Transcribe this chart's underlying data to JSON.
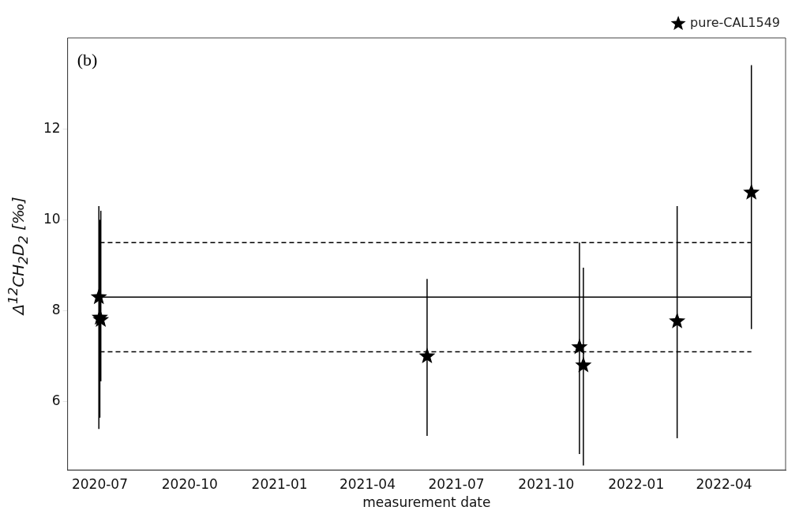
{
  "chart_data": {
    "type": "scatter",
    "xlabel": "measurement date",
    "ylabel": "Δ$^{12}$CH$_{2}$D$_{2}$ [‰]",
    "annotations": [
      "(b)"
    ],
    "xlim": [
      "2020-05-29",
      "2022-06-03"
    ],
    "xticks": [
      "2020-07",
      "2020-10",
      "2021-01",
      "2021-04",
      "2021-07",
      "2021-10",
      "2022-01",
      "2022-04"
    ],
    "ylim": [
      4.5,
      14.0
    ],
    "yticks": [
      6,
      8,
      10,
      12
    ],
    "grid": false,
    "legend": "top right",
    "marker": "star",
    "series": [
      {
        "name": "pure-CAL1549",
        "type": "scatter",
        "color": "#000000",
        "x": [
          "2020-06-30",
          "2020-07-01",
          "2020-07-02",
          "2021-06-01",
          "2021-11-04",
          "2021-11-08",
          "2022-02-12",
          "2022-04-29"
        ],
        "values": [
          8.3,
          7.85,
          7.8,
          7.0,
          7.2,
          6.8,
          7.77,
          10.6
        ],
        "errors": [
          [
            5.4,
            10.3
          ],
          [
            5.65,
            10.0
          ],
          [
            6.45,
            10.2
          ],
          [
            5.25,
            8.7
          ],
          [
            4.85,
            9.5
          ],
          [
            4.6,
            8.95
          ],
          [
            5.2,
            10.3
          ],
          [
            7.6,
            13.4
          ]
        ]
      },
      {
        "type": "line",
        "color": "#000000",
        "line_style": "solid",
        "marker": "none",
        "x": [
          "2020-07-01",
          "2022-04-29"
        ],
        "values": [
          8.3,
          8.3
        ]
      },
      {
        "type": "line",
        "color": "#000000",
        "line_style": "dashed",
        "marker": "none",
        "x": [
          "2020-07-01",
          "2022-04-29"
        ],
        "values": [
          9.5,
          9.5
        ]
      },
      {
        "type": "line",
        "color": "#000000",
        "line_style": "dashed",
        "marker": "none",
        "x": [
          "2020-07-01",
          "2022-04-29"
        ],
        "values": [
          7.1,
          7.1
        ]
      }
    ]
  }
}
